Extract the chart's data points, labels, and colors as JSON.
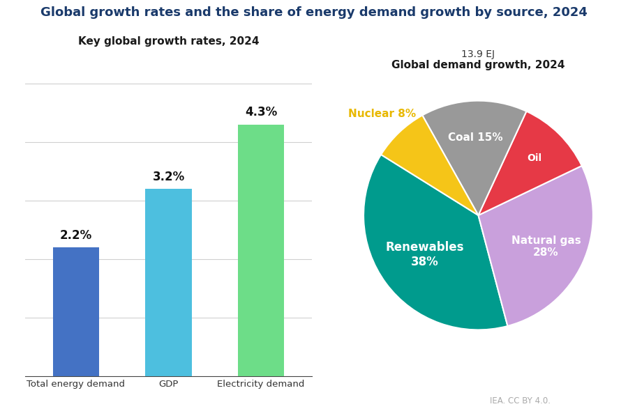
{
  "title": "Global growth rates and the share of energy demand growth by source, 2024",
  "title_color": "#1a3a6b",
  "title_fontsize": 13,
  "background_color": "#ffffff",
  "bar_title": "Key global growth rates, 2024",
  "bar_categories": [
    "Total energy demand",
    "GDP",
    "Electricity demand"
  ],
  "bar_values": [
    2.2,
    3.2,
    4.3
  ],
  "bar_colors": [
    "#4472c4",
    "#4dbfdf",
    "#6ddd88"
  ],
  "bar_label_fontsize": 12,
  "bar_ylim": [
    0,
    5.5
  ],
  "pie_title": "Global demand growth, 2024",
  "pie_subtitle": "13.9 EJ",
  "pie_labels": [
    "Renewables",
    "Natural gas",
    "Oil",
    "Coal",
    "Nuclear"
  ],
  "pie_values": [
    38,
    28,
    11,
    15,
    8
  ],
  "pie_colors": [
    "#009b8d",
    "#c9a0dc",
    "#e63946",
    "#999999",
    "#f5c518"
  ],
  "pie_startangle": 148,
  "nuclear_label_color": "#e8b800",
  "white_label_color": "#ffffff",
  "pie_label_fontsize": 11,
  "iea_credit": "IEA. CC BY 4.0."
}
